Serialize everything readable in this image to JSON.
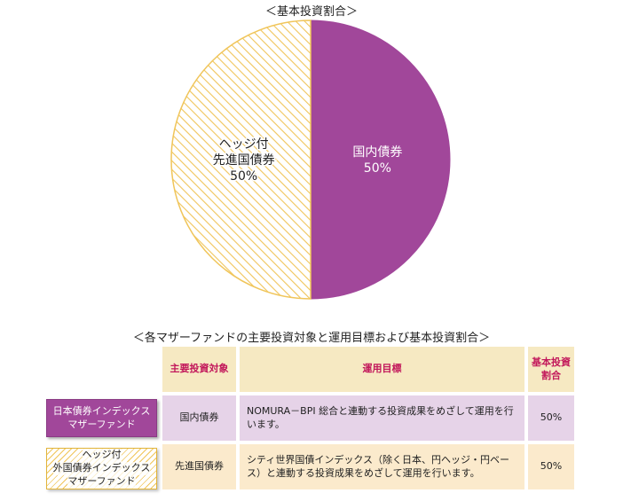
{
  "chart_data": {
    "type": "pie",
    "title": "＜基本投資割合＞",
    "slices": [
      {
        "label_lines": [
          "国内債券"
        ],
        "value": 50,
        "value_label": "50%",
        "color": "#a1479a",
        "pattern": "solid"
      },
      {
        "label_lines": [
          "ヘッジ付",
          "先進国債券"
        ],
        "value": 50,
        "value_label": "50%",
        "color": "#f0c55a",
        "pattern": "hatch"
      }
    ]
  },
  "table": {
    "title": "＜各マザーファンドの主要投資対象と運用目標および基本投資割合＞",
    "headers": {
      "target": "主要投資対象",
      "goal": "運用目標",
      "ratio_l1": "基本投資",
      "ratio_l2": "割合"
    },
    "rows": [
      {
        "fund_l1": "日本債券インデックス",
        "fund_l2": "マザーファンド",
        "target": "国内債券",
        "goal": "NOMURA－BPI 総合と連動する投資成果をめざして運用を行います。",
        "ratio": "50%"
      },
      {
        "fund_l1": "ヘッジ付",
        "fund_l2": "外国債券インデックス",
        "fund_l3": "マザーファンド",
        "target": "先進国債券",
        "goal": "シティ世界国債インデックス（除く日本、円ヘッジ・円ベース）と連動する投資成果をめざして運用を行います。",
        "ratio": "50%"
      }
    ]
  }
}
